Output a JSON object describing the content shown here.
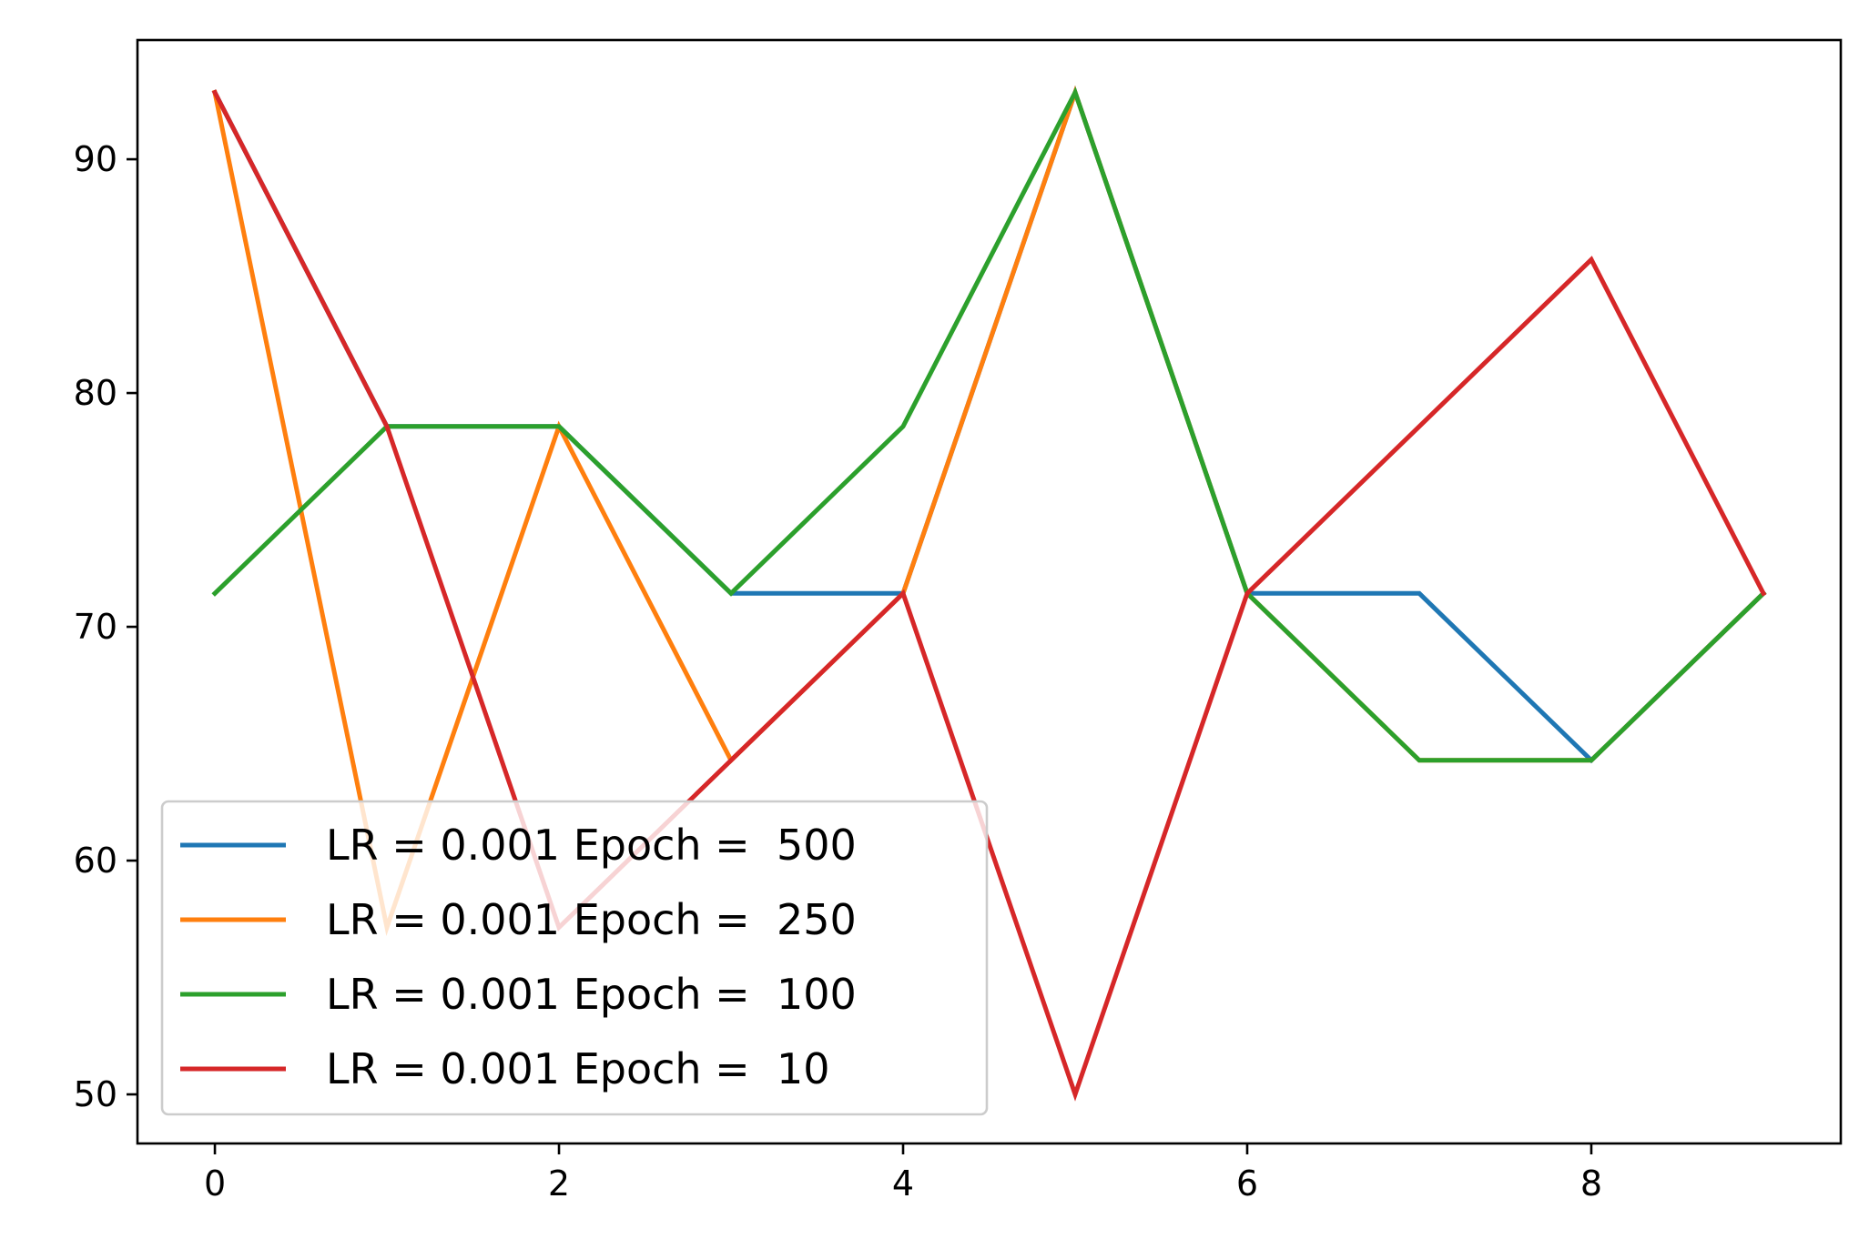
{
  "chart_data": {
    "type": "line",
    "title": "",
    "xlabel": "",
    "ylabel": "",
    "xlim": [
      -0.45,
      9.45
    ],
    "ylim": [
      47.9,
      95.1
    ],
    "xticks": [
      0,
      2,
      4,
      6,
      8
    ],
    "yticks": [
      50,
      60,
      70,
      80,
      90
    ],
    "xtick_labels": [
      "0",
      "2",
      "4",
      "6",
      "8"
    ],
    "ytick_labels": [
      "50",
      "60",
      "70",
      "80",
      "90"
    ],
    "grid": false,
    "legend_position": "lower-left",
    "x": [
      0,
      1,
      2,
      3,
      4,
      5,
      6,
      7,
      8,
      9
    ],
    "series": [
      {
        "name": "LR = 0.001 Epoch =  500",
        "color": "#1f77b4",
        "values": [
          92.86,
          78.57,
          78.57,
          71.43,
          71.43,
          92.86,
          71.43,
          71.43,
          64.29,
          71.43
        ]
      },
      {
        "name": "LR = 0.001 Epoch =  250",
        "color": "#ff7f0e",
        "values": [
          92.86,
          57.14,
          78.57,
          64.29,
          71.43,
          92.86,
          71.43,
          64.29,
          64.29,
          71.43
        ]
      },
      {
        "name": "LR = 0.001 Epoch =  100",
        "color": "#2ca02c",
        "values": [
          71.43,
          78.57,
          78.57,
          71.43,
          78.57,
          92.86,
          71.43,
          64.29,
          64.29,
          71.43
        ]
      },
      {
        "name": "LR = 0.001 Epoch =  10",
        "color": "#d62728",
        "values": [
          92.86,
          78.57,
          57.14,
          64.29,
          71.43,
          50.0,
          71.43,
          78.57,
          85.71,
          71.43
        ]
      }
    ]
  }
}
